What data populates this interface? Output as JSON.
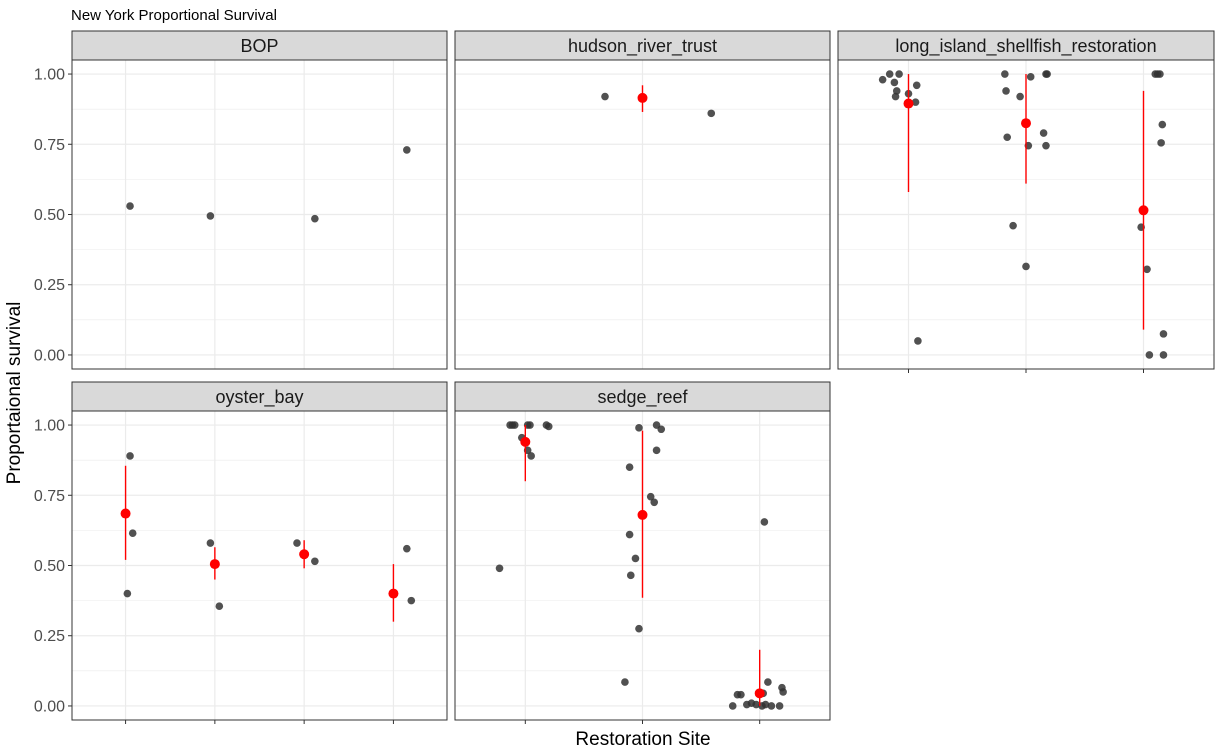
{
  "chart_data": {
    "type": "scatter",
    "title": "New York Proportional Survival",
    "xlabel": "Restoration Site",
    "ylabel": "Proportaional survival",
    "ylim": [
      -0.05,
      1.05
    ],
    "yticks": [
      "0.00",
      "0.25",
      "0.50",
      "0.75",
      "1.00"
    ],
    "ytick_values": [
      0,
      0.25,
      0.5,
      0.75,
      1.0
    ],
    "grid": true,
    "colors": {
      "point": "#333333",
      "mean": "#ff0000",
      "strip": "#d9d9d9",
      "grid": "#ebebeb",
      "border": "#333333"
    },
    "panels": [
      {
        "name": "BOP",
        "n_sites": 4,
        "points": [
          [
            1.05,
            0.53
          ],
          [
            1.95,
            0.495
          ],
          [
            3.12,
            0.485
          ],
          [
            4.15,
            0.73
          ]
        ],
        "summary": []
      },
      {
        "name": "hudson_river_trust",
        "n_sites": 1,
        "points": [
          [
            0.88,
            0.92
          ],
          [
            1.22,
            0.86
          ]
        ],
        "summary": [
          {
            "site": 1,
            "mean": 0.915,
            "low": 0.865,
            "high": 0.96
          }
        ]
      },
      {
        "name": "long_island_shellfish_restoration",
        "n_sites": 3,
        "points": [
          [
            0.78,
            0.98
          ],
          [
            0.84,
            1.0
          ],
          [
            0.88,
            0.97
          ],
          [
            0.9,
            0.94
          ],
          [
            0.92,
            1.0
          ],
          [
            0.89,
            0.92
          ],
          [
            1.0,
            0.93
          ],
          [
            1.07,
            0.96
          ],
          [
            1.06,
            0.9
          ],
          [
            1.08,
            0.05
          ],
          [
            1.82,
            1.0
          ],
          [
            1.83,
            0.94
          ],
          [
            1.95,
            0.92
          ],
          [
            2.04,
            0.99
          ],
          [
            2.17,
            1.0
          ],
          [
            2.18,
            1.0
          ],
          [
            2.15,
            0.79
          ],
          [
            1.84,
            0.775
          ],
          [
            2.02,
            0.745
          ],
          [
            2.17,
            0.745
          ],
          [
            1.89,
            0.46
          ],
          [
            2.0,
            0.315
          ],
          [
            3.1,
            1.0
          ],
          [
            3.12,
            1.0
          ],
          [
            3.14,
            1.0
          ],
          [
            3.16,
            0.82
          ],
          [
            3.15,
            0.755
          ],
          [
            2.98,
            0.455
          ],
          [
            3.03,
            0.305
          ],
          [
            3.17,
            0.075
          ],
          [
            3.05,
            0.0
          ],
          [
            3.17,
            0.0
          ]
        ],
        "summary": [
          {
            "site": 1,
            "mean": 0.895,
            "low": 0.58,
            "high": 1.0
          },
          {
            "site": 2,
            "mean": 0.825,
            "low": 0.61,
            "high": 1.0
          },
          {
            "site": 3,
            "mean": 0.515,
            "low": 0.09,
            "high": 0.94
          }
        ]
      },
      {
        "name": "oyster_bay",
        "n_sites": 4,
        "points": [
          [
            1.05,
            0.89
          ],
          [
            1.08,
            0.615
          ],
          [
            1.02,
            0.4
          ],
          [
            1.95,
            0.58
          ],
          [
            2.05,
            0.355
          ],
          [
            2.92,
            0.58
          ],
          [
            3.12,
            0.515
          ],
          [
            4.15,
            0.56
          ],
          [
            4.2,
            0.375
          ]
        ],
        "summary": [
          {
            "site": 1,
            "mean": 0.685,
            "low": 0.52,
            "high": 0.855
          },
          {
            "site": 2,
            "mean": 0.505,
            "low": 0.45,
            "high": 0.565
          },
          {
            "site": 3,
            "mean": 0.54,
            "low": 0.49,
            "high": 0.59
          },
          {
            "site": 4,
            "mean": 0.4,
            "low": 0.3,
            "high": 0.505
          }
        ]
      },
      {
        "name": "sedge_reef",
        "n_sites": 3,
        "points": [
          [
            0.87,
            1.0
          ],
          [
            0.89,
            1.0
          ],
          [
            0.91,
            1.0
          ],
          [
            1.02,
            1.0
          ],
          [
            1.04,
            1.0
          ],
          [
            1.18,
            1.0
          ],
          [
            1.2,
            0.995
          ],
          [
            0.97,
            0.955
          ],
          [
            1.02,
            0.91
          ],
          [
            1.05,
            0.89
          ],
          [
            0.78,
            0.49
          ],
          [
            1.97,
            0.99
          ],
          [
            2.12,
            1.0
          ],
          [
            2.16,
            0.985
          ],
          [
            2.12,
            0.91
          ],
          [
            1.89,
            0.85
          ],
          [
            2.07,
            0.745
          ],
          [
            2.1,
            0.725
          ],
          [
            1.89,
            0.61
          ],
          [
            1.94,
            0.525
          ],
          [
            1.9,
            0.465
          ],
          [
            1.97,
            0.275
          ],
          [
            1.85,
            0.085
          ],
          [
            2.77,
            0.0
          ],
          [
            2.81,
            0.04
          ],
          [
            2.84,
            0.04
          ],
          [
            2.89,
            0.005
          ],
          [
            2.93,
            0.01
          ],
          [
            2.97,
            0.005
          ],
          [
            3.02,
            0.0
          ],
          [
            3.05,
            0.005
          ],
          [
            3.1,
            0.0
          ],
          [
            3.17,
            0.0
          ],
          [
            3.19,
            0.065
          ],
          [
            3.2,
            0.05
          ],
          [
            3.07,
            0.085
          ],
          [
            3.03,
            0.045
          ],
          [
            3.04,
            0.655
          ]
        ],
        "summary": [
          {
            "site": 1,
            "mean": 0.94,
            "low": 0.8,
            "high": 1.0
          },
          {
            "site": 2,
            "mean": 0.68,
            "low": 0.385,
            "high": 0.98
          },
          {
            "site": 3,
            "mean": 0.045,
            "low": 0.0,
            "high": 0.2
          }
        ]
      }
    ]
  }
}
